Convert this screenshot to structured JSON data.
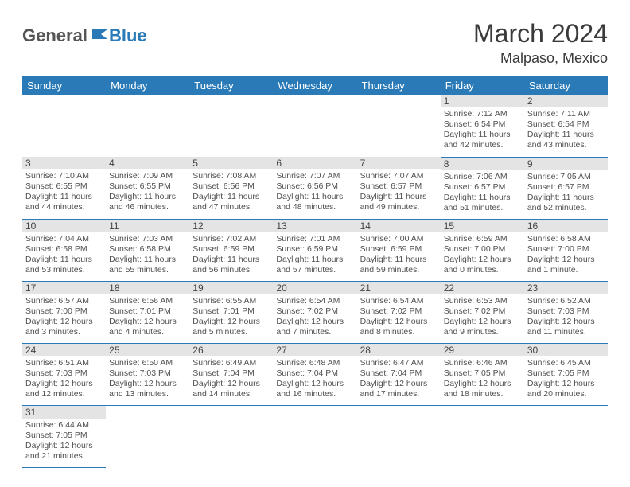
{
  "logo": {
    "text1": "General",
    "text2": "Blue"
  },
  "title": "March 2024",
  "location": "Malpaso, Mexico",
  "colors": {
    "header_bg": "#2a7ab8",
    "daynum_bg": "#e4e4e4",
    "text": "#4a4a4a"
  },
  "weekdays": [
    "Sunday",
    "Monday",
    "Tuesday",
    "Wednesday",
    "Thursday",
    "Friday",
    "Saturday"
  ],
  "weeks": [
    [
      null,
      null,
      null,
      null,
      null,
      {
        "n": "1",
        "sr": "Sunrise: 7:12 AM",
        "ss": "Sunset: 6:54 PM",
        "dl": "Daylight: 11 hours and 42 minutes."
      },
      {
        "n": "2",
        "sr": "Sunrise: 7:11 AM",
        "ss": "Sunset: 6:54 PM",
        "dl": "Daylight: 11 hours and 43 minutes."
      }
    ],
    [
      {
        "n": "3",
        "sr": "Sunrise: 7:10 AM",
        "ss": "Sunset: 6:55 PM",
        "dl": "Daylight: 11 hours and 44 minutes."
      },
      {
        "n": "4",
        "sr": "Sunrise: 7:09 AM",
        "ss": "Sunset: 6:55 PM",
        "dl": "Daylight: 11 hours and 46 minutes."
      },
      {
        "n": "5",
        "sr": "Sunrise: 7:08 AM",
        "ss": "Sunset: 6:56 PM",
        "dl": "Daylight: 11 hours and 47 minutes."
      },
      {
        "n": "6",
        "sr": "Sunrise: 7:07 AM",
        "ss": "Sunset: 6:56 PM",
        "dl": "Daylight: 11 hours and 48 minutes."
      },
      {
        "n": "7",
        "sr": "Sunrise: 7:07 AM",
        "ss": "Sunset: 6:57 PM",
        "dl": "Daylight: 11 hours and 49 minutes."
      },
      {
        "n": "8",
        "sr": "Sunrise: 7:06 AM",
        "ss": "Sunset: 6:57 PM",
        "dl": "Daylight: 11 hours and 51 minutes."
      },
      {
        "n": "9",
        "sr": "Sunrise: 7:05 AM",
        "ss": "Sunset: 6:57 PM",
        "dl": "Daylight: 11 hours and 52 minutes."
      }
    ],
    [
      {
        "n": "10",
        "sr": "Sunrise: 7:04 AM",
        "ss": "Sunset: 6:58 PM",
        "dl": "Daylight: 11 hours and 53 minutes."
      },
      {
        "n": "11",
        "sr": "Sunrise: 7:03 AM",
        "ss": "Sunset: 6:58 PM",
        "dl": "Daylight: 11 hours and 55 minutes."
      },
      {
        "n": "12",
        "sr": "Sunrise: 7:02 AM",
        "ss": "Sunset: 6:59 PM",
        "dl": "Daylight: 11 hours and 56 minutes."
      },
      {
        "n": "13",
        "sr": "Sunrise: 7:01 AM",
        "ss": "Sunset: 6:59 PM",
        "dl": "Daylight: 11 hours and 57 minutes."
      },
      {
        "n": "14",
        "sr": "Sunrise: 7:00 AM",
        "ss": "Sunset: 6:59 PM",
        "dl": "Daylight: 11 hours and 59 minutes."
      },
      {
        "n": "15",
        "sr": "Sunrise: 6:59 AM",
        "ss": "Sunset: 7:00 PM",
        "dl": "Daylight: 12 hours and 0 minutes."
      },
      {
        "n": "16",
        "sr": "Sunrise: 6:58 AM",
        "ss": "Sunset: 7:00 PM",
        "dl": "Daylight: 12 hours and 1 minute."
      }
    ],
    [
      {
        "n": "17",
        "sr": "Sunrise: 6:57 AM",
        "ss": "Sunset: 7:00 PM",
        "dl": "Daylight: 12 hours and 3 minutes."
      },
      {
        "n": "18",
        "sr": "Sunrise: 6:56 AM",
        "ss": "Sunset: 7:01 PM",
        "dl": "Daylight: 12 hours and 4 minutes."
      },
      {
        "n": "19",
        "sr": "Sunrise: 6:55 AM",
        "ss": "Sunset: 7:01 PM",
        "dl": "Daylight: 12 hours and 5 minutes."
      },
      {
        "n": "20",
        "sr": "Sunrise: 6:54 AM",
        "ss": "Sunset: 7:02 PM",
        "dl": "Daylight: 12 hours and 7 minutes."
      },
      {
        "n": "21",
        "sr": "Sunrise: 6:54 AM",
        "ss": "Sunset: 7:02 PM",
        "dl": "Daylight: 12 hours and 8 minutes."
      },
      {
        "n": "22",
        "sr": "Sunrise: 6:53 AM",
        "ss": "Sunset: 7:02 PM",
        "dl": "Daylight: 12 hours and 9 minutes."
      },
      {
        "n": "23",
        "sr": "Sunrise: 6:52 AM",
        "ss": "Sunset: 7:03 PM",
        "dl": "Daylight: 12 hours and 11 minutes."
      }
    ],
    [
      {
        "n": "24",
        "sr": "Sunrise: 6:51 AM",
        "ss": "Sunset: 7:03 PM",
        "dl": "Daylight: 12 hours and 12 minutes."
      },
      {
        "n": "25",
        "sr": "Sunrise: 6:50 AM",
        "ss": "Sunset: 7:03 PM",
        "dl": "Daylight: 12 hours and 13 minutes."
      },
      {
        "n": "26",
        "sr": "Sunrise: 6:49 AM",
        "ss": "Sunset: 7:04 PM",
        "dl": "Daylight: 12 hours and 14 minutes."
      },
      {
        "n": "27",
        "sr": "Sunrise: 6:48 AM",
        "ss": "Sunset: 7:04 PM",
        "dl": "Daylight: 12 hours and 16 minutes."
      },
      {
        "n": "28",
        "sr": "Sunrise: 6:47 AM",
        "ss": "Sunset: 7:04 PM",
        "dl": "Daylight: 12 hours and 17 minutes."
      },
      {
        "n": "29",
        "sr": "Sunrise: 6:46 AM",
        "ss": "Sunset: 7:05 PM",
        "dl": "Daylight: 12 hours and 18 minutes."
      },
      {
        "n": "30",
        "sr": "Sunrise: 6:45 AM",
        "ss": "Sunset: 7:05 PM",
        "dl": "Daylight: 12 hours and 20 minutes."
      }
    ],
    [
      {
        "n": "31",
        "sr": "Sunrise: 6:44 AM",
        "ss": "Sunset: 7:05 PM",
        "dl": "Daylight: 12 hours and 21 minutes."
      },
      null,
      null,
      null,
      null,
      null,
      null
    ]
  ]
}
